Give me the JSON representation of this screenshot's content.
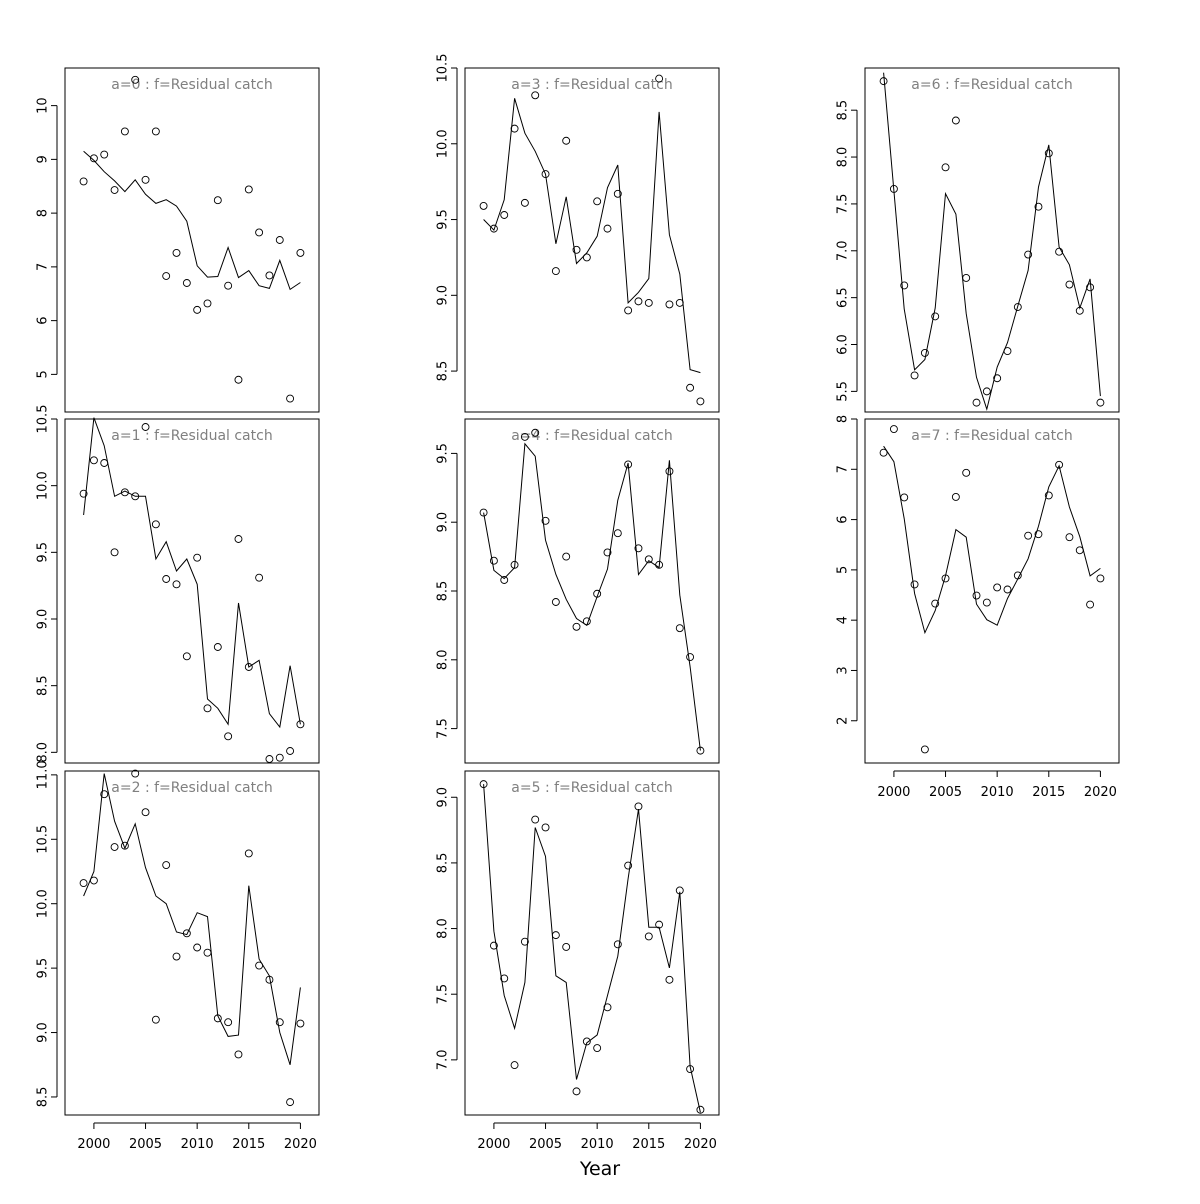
{
  "chart_data": {
    "type": "line",
    "xlabel": "Year",
    "layout": "3 columns x 3 rows, panels filled column-wise",
    "x_ticks": [
      2000,
      2005,
      2010,
      2015,
      2020
    ],
    "x_range": [
      1997.2,
      2021.8
    ],
    "style": {
      "fitted": "line",
      "observed": "open circles",
      "title_color": "#808080"
    },
    "panels": [
      {
        "title": "a=0  :  f=Residual catch",
        "ylim": [
          4.3,
          10.7
        ],
        "yticks": [
          5,
          6,
          7,
          8,
          9,
          10
        ],
        "ytick_labels": [
          "5",
          "6",
          "7",
          "8",
          "9",
          "10"
        ],
        "x": [
          1999,
          2000,
          2001,
          2002,
          2003,
          2004,
          2005,
          2006,
          2007,
          2008,
          2009,
          2010,
          2011,
          2012,
          2013,
          2014,
          2015,
          2016,
          2017,
          2018,
          2019,
          2020
        ],
        "observed": [
          8.59,
          9.02,
          9.09,
          8.43,
          9.52,
          10.48,
          8.62,
          9.52,
          6.83,
          7.26,
          6.7,
          6.2,
          6.32,
          8.24,
          6.65,
          4.9,
          8.44,
          7.64,
          6.84,
          7.5,
          4.55,
          7.26
        ],
        "fitted": [
          9.15,
          8.98,
          8.77,
          8.6,
          8.4,
          8.62,
          8.35,
          8.18,
          8.25,
          8.13,
          7.85,
          7.02,
          6.81,
          6.82,
          7.36,
          6.8,
          6.93,
          6.65,
          6.6,
          7.12,
          6.58,
          6.71
        ]
      },
      {
        "title": "a=1  :  f=Residual catch",
        "ylim": [
          7.92,
          10.5
        ],
        "yticks": [
          8.0,
          8.5,
          9.0,
          9.5,
          10.0,
          10.5
        ],
        "ytick_labels": [
          "8.0",
          "8.5",
          "9.0",
          "9.5",
          "10.0",
          "10.5"
        ],
        "x": [
          1999,
          2000,
          2001,
          2002,
          2003,
          2004,
          2005,
          2006,
          2007,
          2008,
          2009,
          2010,
          2011,
          2012,
          2013,
          2014,
          2015,
          2016,
          2017,
          2018,
          2019,
          2020
        ],
        "observed": [
          9.94,
          10.19,
          10.17,
          9.5,
          9.95,
          9.92,
          10.44,
          9.71,
          9.3,
          9.26,
          8.72,
          9.46,
          8.33,
          8.79,
          8.12,
          9.6,
          8.64,
          9.31,
          7.95,
          7.96,
          8.01,
          8.21
        ],
        "fitted": [
          9.78,
          10.51,
          10.3,
          9.92,
          9.96,
          9.92,
          9.92,
          9.45,
          9.58,
          9.36,
          9.45,
          9.26,
          8.4,
          8.33,
          8.21,
          9.12,
          8.64,
          8.69,
          8.29,
          8.19,
          8.65,
          8.21
        ]
      },
      {
        "title": "a=2  :  f=Residual catch",
        "ylim": [
          8.36,
          11.03
        ],
        "yticks": [
          8.5,
          9.0,
          9.5,
          10.0,
          10.5,
          11.0
        ],
        "ytick_labels": [
          "8.5",
          "9.0",
          "9.5",
          "10.0",
          "10.5",
          "11.0"
        ],
        "x": [
          1999,
          2000,
          2001,
          2002,
          2003,
          2004,
          2005,
          2006,
          2007,
          2008,
          2009,
          2010,
          2011,
          2012,
          2013,
          2014,
          2015,
          2016,
          2017,
          2018,
          2019,
          2020
        ],
        "observed": [
          10.16,
          10.18,
          10.85,
          10.44,
          10.45,
          11.01,
          10.71,
          9.1,
          10.3,
          9.59,
          9.77,
          9.66,
          9.62,
          9.11,
          9.08,
          8.83,
          10.39,
          9.52,
          9.41,
          9.08,
          8.46,
          9.07
        ],
        "fitted": [
          10.06,
          10.25,
          11.01,
          10.64,
          10.43,
          10.62,
          10.28,
          10.06,
          10.0,
          9.78,
          9.76,
          9.93,
          9.9,
          9.13,
          8.97,
          8.98,
          10.14,
          9.57,
          9.44,
          9.0,
          8.75,
          9.35
        ]
      },
      {
        "title": "a=3  :  f=Residual catch",
        "ylim": [
          8.23,
          10.5
        ],
        "yticks": [
          8.5,
          9.0,
          9.5,
          10.0,
          10.5
        ],
        "ytick_labels": [
          "8.5",
          "9.0",
          "9.5",
          "10.0",
          "10.5"
        ],
        "x": [
          1999,
          2000,
          2001,
          2002,
          2003,
          2004,
          2005,
          2006,
          2007,
          2008,
          2009,
          2010,
          2011,
          2012,
          2013,
          2014,
          2015,
          2016,
          2017,
          2018,
          2019,
          2020
        ],
        "observed": [
          9.59,
          9.44,
          9.53,
          10.1,
          9.61,
          10.32,
          9.8,
          9.16,
          10.02,
          9.3,
          9.25,
          9.62,
          9.44,
          9.67,
          8.9,
          8.96,
          8.95,
          10.43,
          8.94,
          8.95,
          8.39,
          8.3
        ],
        "fitted": [
          9.5,
          9.43,
          9.63,
          10.3,
          10.07,
          9.95,
          9.8,
          9.34,
          9.65,
          9.21,
          9.28,
          9.39,
          9.71,
          9.86,
          8.95,
          9.02,
          9.11,
          10.21,
          9.4,
          9.14,
          8.51,
          8.49
        ]
      },
      {
        "title": "a=4  :  f=Residual catch",
        "ylim": [
          7.25,
          9.75
        ],
        "yticks": [
          7.5,
          8.0,
          8.5,
          9.0,
          9.5
        ],
        "ytick_labels": [
          "7.5",
          "8.0",
          "8.5",
          "9.0",
          "9.5"
        ],
        "x": [
          1999,
          2000,
          2001,
          2002,
          2003,
          2004,
          2005,
          2006,
          2007,
          2008,
          2009,
          2010,
          2011,
          2012,
          2013,
          2014,
          2015,
          2016,
          2017,
          2018,
          2019,
          2020
        ],
        "observed": [
          9.07,
          8.72,
          8.58,
          8.69,
          9.62,
          9.65,
          9.01,
          8.42,
          8.75,
          8.24,
          8.28,
          8.48,
          8.78,
          8.92,
          9.42,
          8.81,
          8.73,
          8.69,
          9.37,
          8.23,
          8.02,
          7.34
        ],
        "fitted": [
          9.07,
          8.65,
          8.59,
          8.67,
          9.57,
          9.48,
          8.87,
          8.62,
          8.44,
          8.3,
          8.25,
          8.46,
          8.66,
          9.16,
          9.43,
          8.62,
          8.72,
          8.67,
          9.45,
          8.47,
          7.95,
          7.34
        ]
      },
      {
        "title": "a=5  :  f=Residual catch",
        "ylim": [
          6.58,
          9.2
        ],
        "yticks": [
          7.0,
          7.5,
          8.0,
          8.5,
          9.0
        ],
        "ytick_labels": [
          "7.0",
          "7.5",
          "8.0",
          "8.5",
          "9.0"
        ],
        "x": [
          1999,
          2000,
          2001,
          2002,
          2003,
          2004,
          2005,
          2006,
          2007,
          2008,
          2009,
          2010,
          2011,
          2012,
          2013,
          2014,
          2015,
          2016,
          2017,
          2018,
          2019,
          2020
        ],
        "observed": [
          9.1,
          7.87,
          7.62,
          6.96,
          7.9,
          8.83,
          8.77,
          7.95,
          7.86,
          6.76,
          7.14,
          7.09,
          7.4,
          7.88,
          8.48,
          8.93,
          7.94,
          8.03,
          7.61,
          8.29,
          6.93,
          6.62
        ],
        "fitted": [
          9.1,
          7.98,
          7.49,
          7.24,
          7.59,
          8.77,
          8.55,
          7.64,
          7.59,
          6.85,
          7.13,
          7.19,
          7.49,
          7.79,
          8.38,
          8.91,
          8.01,
          8.01,
          7.7,
          8.28,
          6.95,
          6.6
        ]
      },
      {
        "title": "a=6  :  f=Residual catch",
        "ylim": [
          5.28,
          8.95
        ],
        "yticks": [
          5.5,
          6.0,
          6.5,
          7.0,
          7.5,
          8.0,
          8.5
        ],
        "ytick_labels": [
          "5.5",
          "6.0",
          "6.5",
          "7.0",
          "7.5",
          "8.0",
          "8.5"
        ],
        "x": [
          1999,
          2000,
          2001,
          2002,
          2003,
          2004,
          2005,
          2006,
          2007,
          2008,
          2009,
          2010,
          2011,
          2012,
          2013,
          2014,
          2015,
          2016,
          2017,
          2018,
          2019,
          2020
        ],
        "observed": [
          8.81,
          7.66,
          6.63,
          5.67,
          5.91,
          6.3,
          7.89,
          8.39,
          6.71,
          5.38,
          5.5,
          5.64,
          5.93,
          6.4,
          6.96,
          7.47,
          8.04,
          6.99,
          6.64,
          6.36,
          6.61,
          5.38
        ],
        "fitted": [
          8.9,
          7.64,
          6.38,
          5.73,
          5.84,
          6.39,
          7.61,
          7.39,
          6.33,
          5.65,
          5.31,
          5.76,
          6.02,
          6.41,
          6.79,
          7.68,
          8.13,
          7.04,
          6.85,
          6.39,
          6.7,
          5.45
        ]
      },
      {
        "title": "a=7  :  f=Residual catch",
        "ylim": [
          1.16,
          8.0
        ],
        "yticks": [
          2,
          3,
          4,
          5,
          6,
          7,
          8
        ],
        "ytick_labels": [
          "2",
          "3",
          "4",
          "5",
          "6",
          "7",
          "8"
        ],
        "x": [
          1999,
          2000,
          2001,
          2002,
          2003,
          2004,
          2005,
          2006,
          2007,
          2008,
          2009,
          2010,
          2011,
          2012,
          2013,
          2014,
          2015,
          2016,
          2017,
          2018,
          2019,
          2020
        ],
        "observed": [
          7.33,
          7.8,
          6.44,
          4.71,
          1.43,
          4.33,
          4.83,
          6.45,
          6.93,
          4.49,
          4.35,
          4.65,
          4.61,
          4.89,
          5.68,
          5.71,
          6.48,
          7.09,
          5.65,
          5.39,
          4.31,
          4.83
        ],
        "fitted": [
          7.46,
          7.15,
          6.02,
          4.53,
          3.75,
          4.19,
          4.88,
          5.8,
          5.65,
          4.32,
          4.01,
          3.9,
          4.43,
          4.82,
          5.22,
          5.87,
          6.65,
          7.07,
          6.25,
          5.66,
          4.88,
          5.03
        ]
      }
    ]
  }
}
